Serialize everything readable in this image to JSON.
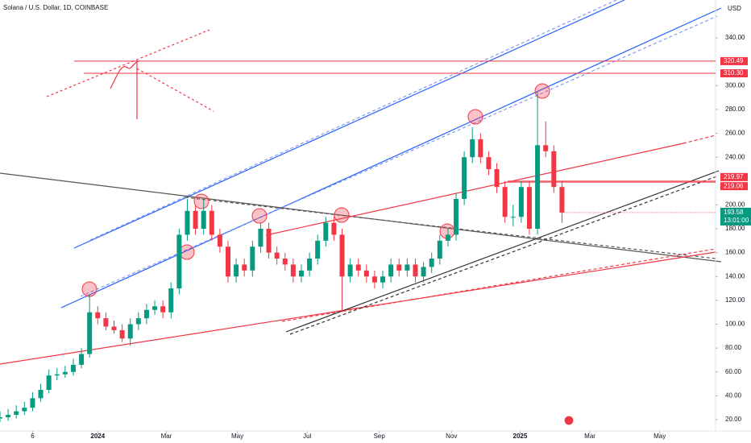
{
  "chart_data": {
    "type": "candlestick",
    "title": "Solana / U.S. Dollar, 1D, COINBASE",
    "currency": "USD",
    "up_color": "#089981",
    "down_color": "#f23645",
    "x": [
      0,
      7,
      14,
      21,
      28,
      35,
      42,
      49,
      56,
      63,
      70,
      77,
      84,
      91,
      98,
      105,
      112,
      119,
      126,
      133,
      140,
      147,
      154,
      161,
      168,
      175,
      182,
      189,
      196,
      203,
      210,
      217,
      224,
      231,
      238,
      245,
      252,
      259,
      266,
      273,
      280,
      287,
      294,
      301,
      308,
      315,
      322,
      329,
      336,
      343,
      350,
      357,
      364,
      371,
      378,
      385,
      392,
      399,
      406,
      413,
      420,
      427,
      434,
      441,
      448,
      455,
      462,
      469,
      476,
      483
    ],
    "open": [
      21,
      22,
      24,
      27,
      30,
      38,
      45,
      57,
      58,
      60,
      66,
      75,
      110,
      105,
      98,
      95,
      88,
      100,
      105,
      112,
      115,
      110,
      130,
      175,
      195,
      180,
      195,
      175,
      165,
      140,
      150,
      145,
      165,
      180,
      160,
      155,
      150,
      140,
      145,
      155,
      170,
      185,
      175,
      140,
      150,
      145,
      140,
      135,
      140,
      150,
      145,
      150,
      140,
      148,
      155,
      170,
      175,
      205,
      240,
      255,
      240,
      230,
      215,
      190,
      190,
      215,
      180,
      250,
      245,
      215
    ],
    "high": [
      27,
      29,
      32,
      35,
      43,
      50,
      62,
      63,
      65,
      71,
      80,
      125,
      115,
      110,
      103,
      100,
      105,
      110,
      117,
      120,
      120,
      135,
      180,
      205,
      200,
      205,
      200,
      180,
      170,
      155,
      155,
      170,
      185,
      185,
      165,
      160,
      155,
      150,
      160,
      175,
      190,
      190,
      180,
      155,
      155,
      150,
      145,
      145,
      155,
      155,
      155,
      155,
      152,
      160,
      175,
      180,
      210,
      245,
      265,
      260,
      245,
      235,
      220,
      200,
      220,
      220,
      295,
      270,
      250,
      220
    ],
    "low": [
      18,
      19,
      21,
      24,
      27,
      35,
      42,
      53,
      55,
      57,
      63,
      72,
      100,
      95,
      92,
      85,
      82,
      95,
      100,
      108,
      105,
      105,
      125,
      170,
      175,
      175,
      170,
      160,
      135,
      135,
      140,
      140,
      160,
      155,
      150,
      145,
      135,
      135,
      140,
      150,
      165,
      170,
      110,
      135,
      140,
      135,
      130,
      130,
      135,
      140,
      140,
      135,
      135,
      143,
      150,
      165,
      170,
      200,
      235,
      235,
      225,
      210,
      185,
      182,
      185,
      175,
      175,
      240,
      210,
      185
    ],
    "close": [
      22,
      24,
      27,
      30,
      38,
      45,
      57,
      58,
      60,
      66,
      75,
      110,
      105,
      98,
      95,
      88,
      100,
      105,
      112,
      115,
      110,
      130,
      175,
      195,
      180,
      195,
      175,
      165,
      140,
      150,
      145,
      165,
      180,
      160,
      155,
      150,
      140,
      145,
      155,
      170,
      185,
      175,
      140,
      150,
      145,
      140,
      135,
      140,
      150,
      145,
      150,
      140,
      148,
      155,
      170,
      175,
      205,
      240,
      255,
      240,
      230,
      215,
      190,
      190,
      215,
      180,
      250,
      245,
      215,
      193.58
    ],
    "xlim": [
      0,
      615
    ],
    "xticks": [
      {
        "value": 28,
        "label": "6"
      },
      {
        "value": 84,
        "label": "2024"
      },
      {
        "value": 143,
        "label": "Mar"
      },
      {
        "value": 204,
        "label": "May"
      },
      {
        "value": 264,
        "label": "Jul"
      },
      {
        "value": 326,
        "label": "Sep"
      },
      {
        "value": 388,
        "label": "Nov"
      },
      {
        "value": 447,
        "label": "2025"
      },
      {
        "value": 507,
        "label": "Mar"
      },
      {
        "value": 567,
        "label": "May"
      }
    ],
    "ylim": [
      10.55,
      371.75
    ],
    "yticks": [
      {
        "value": 20,
        "label": "20.00"
      },
      {
        "value": 40,
        "label": "40.00"
      },
      {
        "value": 60,
        "label": "60.00"
      },
      {
        "value": 80,
        "label": "80.00"
      },
      {
        "value": 100,
        "label": "100.00"
      },
      {
        "value": 120,
        "label": "120.00"
      },
      {
        "value": 140,
        "label": "140.00"
      },
      {
        "value": 160,
        "label": "160.00"
      },
      {
        "value": 180,
        "label": "180.00"
      },
      {
        "value": 200,
        "label": "200.00"
      },
      {
        "value": 240,
        "label": "240.00"
      },
      {
        "value": 260,
        "label": "260.00"
      },
      {
        "value": 280,
        "label": "280.00"
      },
      {
        "value": 300,
        "label": "300.00"
      },
      {
        "value": 340,
        "label": "340.00"
      }
    ],
    "levels": [
      320.49,
      {
        "value": 310.3,
        "label": "310.30"
      },
      219.97,
      219.06
    ],
    "last_price": 193.58,
    "countdown": "13:01:00"
  }
}
